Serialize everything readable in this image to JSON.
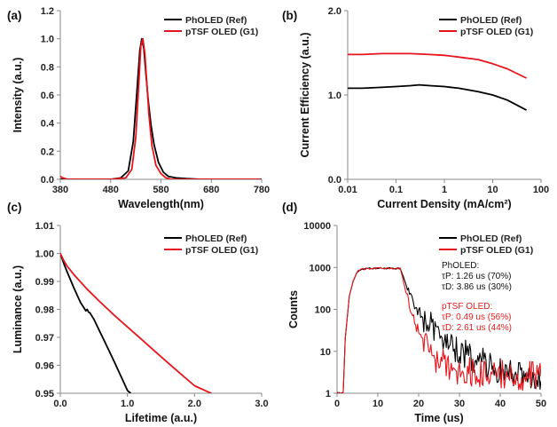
{
  "colors": {
    "ref": "#000000",
    "g1": "#e8141b"
  },
  "chart_data": [
    {
      "id": "a",
      "type": "line",
      "panel_label": "(a)",
      "xlabel": "Wavelength(nm)",
      "ylabel": "Intensity (a.u.)",
      "xlim": [
        380,
        780
      ],
      "ylim": [
        0,
        1.2
      ],
      "xticks": [
        "380",
        "480",
        "580",
        "680",
        "780"
      ],
      "yticks": [
        "0.0",
        "0.2",
        "0.4",
        "0.6",
        "0.8",
        "1.0",
        "1.2"
      ],
      "legend_position": "top-right",
      "series": [
        {
          "name": "PhOLED (Ref)",
          "color_key": "ref",
          "x": [
            380,
            480,
            500,
            515,
            525,
            532,
            538,
            542,
            546,
            550,
            555,
            560,
            566,
            575,
            585,
            595,
            610,
            630,
            660,
            780
          ],
          "y": [
            0,
            0,
            0.01,
            0.06,
            0.27,
            0.62,
            0.92,
            1.0,
            0.93,
            0.75,
            0.55,
            0.39,
            0.25,
            0.12,
            0.05,
            0.02,
            0.01,
            0.005,
            0,
            0
          ]
        },
        {
          "name": "pTSF OLED (G1)",
          "color_key": "g1",
          "x": [
            380,
            385,
            395,
            480,
            510,
            522,
            530,
            536,
            540,
            544,
            548,
            552,
            556,
            562,
            570,
            580,
            590,
            600,
            620,
            780
          ],
          "y": [
            0.02,
            0.01,
            0,
            0,
            0.01,
            0.07,
            0.3,
            0.68,
            0.95,
            1.0,
            0.9,
            0.68,
            0.46,
            0.24,
            0.1,
            0.04,
            0.01,
            0,
            0,
            0
          ]
        }
      ]
    },
    {
      "id": "b",
      "type": "line",
      "panel_label": "(b)",
      "xlabel": "Current Density (mA/cm²)",
      "ylabel": "Current Efficiency (a.u.)",
      "xscale": "log",
      "xlim": [
        0.01,
        100
      ],
      "ylim": [
        0,
        2.0
      ],
      "xticks": [
        "0.01",
        "0.1",
        "1",
        "10",
        "100"
      ],
      "yticks": [
        "0.0",
        "1.0",
        "2.0"
      ],
      "legend_position": "top-right",
      "series": [
        {
          "name": "PhOLED (Ref)",
          "color_key": "ref",
          "x": [
            0.01,
            0.02,
            0.05,
            0.1,
            0.2,
            0.3,
            0.5,
            1,
            2,
            5,
            10,
            20,
            50
          ],
          "y": [
            1.08,
            1.08,
            1.09,
            1.1,
            1.11,
            1.12,
            1.11,
            1.1,
            1.08,
            1.04,
            1.0,
            0.94,
            0.82
          ]
        },
        {
          "name": "pTSF OLED (G1)",
          "color_key": "g1",
          "x": [
            0.01,
            0.02,
            0.05,
            0.1,
            0.2,
            0.5,
            1,
            2,
            5,
            10,
            20,
            50
          ],
          "y": [
            1.48,
            1.48,
            1.49,
            1.49,
            1.49,
            1.48,
            1.47,
            1.45,
            1.42,
            1.37,
            1.31,
            1.2
          ]
        }
      ]
    },
    {
      "id": "c",
      "type": "line",
      "panel_label": "(c)",
      "xlabel": "Lifetime (a.u.)",
      "ylabel": "Luminance (a.u.)",
      "xlim": [
        0,
        3.0
      ],
      "ylim": [
        0.95,
        1.01
      ],
      "xticks": [
        "0.0",
        "1.0",
        "2.0",
        "3.0"
      ],
      "yticks": [
        "0.95",
        "0.96",
        "0.97",
        "0.98",
        "0.99",
        "1.00",
        "1.01"
      ],
      "legend_position": "top-right",
      "series": [
        {
          "name": "PhOLED (Ref)",
          "color_key": "ref",
          "x": [
            0,
            0.05,
            0.1,
            0.2,
            0.3,
            0.38,
            0.4,
            0.42,
            0.44,
            0.5,
            0.6,
            0.7,
            0.8,
            0.9,
            1.0,
            1.05
          ],
          "y": [
            1.0,
            0.9965,
            0.9935,
            0.9878,
            0.9825,
            0.9795,
            0.98,
            0.979,
            0.9788,
            0.9765,
            0.9715,
            0.9665,
            0.9615,
            0.9563,
            0.951,
            0.95
          ]
        },
        {
          "name": "pTSF OLED (G1)",
          "color_key": "g1",
          "x": [
            0,
            0.05,
            0.1,
            0.2,
            0.4,
            0.6,
            0.8,
            1.0,
            1.2,
            1.4,
            1.6,
            1.8,
            2.0,
            2.2,
            2.25
          ],
          "y": [
            1.0,
            0.9975,
            0.9955,
            0.9925,
            0.9872,
            0.9825,
            0.978,
            0.9737,
            0.9695,
            0.9652,
            0.961,
            0.9568,
            0.9527,
            0.9505,
            0.95
          ]
        }
      ]
    },
    {
      "id": "d",
      "type": "line",
      "panel_label": "(d)",
      "xlabel": "Time (us)",
      "ylabel": "Counts",
      "yscale": "log",
      "xlim": [
        0,
        50
      ],
      "ylim": [
        1,
        10000
      ],
      "xticks": [
        "0",
        "10",
        "20",
        "30",
        "40",
        "50"
      ],
      "yticks": [
        "1",
        "10",
        "100",
        "1000",
        "10000"
      ],
      "legend_position": "top-right",
      "series": [
        {
          "name": "PhOLED (Ref)",
          "color_key": "ref",
          "x": [
            0,
            1,
            1.5,
            2,
            3,
            4,
            5,
            6,
            8,
            10,
            12,
            14,
            15.5,
            16,
            17,
            18,
            19,
            20,
            22,
            24,
            26,
            28,
            30,
            32,
            35,
            38,
            42,
            46,
            50
          ],
          "y": [
            1,
            1,
            1,
            20,
            200,
            500,
            800,
            900,
            940,
            950,
            950,
            950,
            940,
            700,
            350,
            200,
            120,
            90,
            50,
            30,
            20,
            14,
            10,
            8,
            6,
            4,
            3,
            2.5,
            2
          ]
        },
        {
          "name": "pTSF OLED (G1)",
          "color_key": "g1",
          "x": [
            0,
            1,
            1.5,
            2,
            3,
            4,
            5,
            6,
            8,
            10,
            12,
            14,
            15.5,
            16,
            17,
            18,
            19,
            20,
            22,
            24,
            26,
            28,
            30,
            35,
            40,
            45,
            50
          ],
          "y": [
            1,
            1,
            1,
            20,
            200,
            500,
            800,
            900,
            940,
            950,
            950,
            950,
            940,
            600,
            230,
            100,
            50,
            30,
            12,
            7,
            5,
            4,
            3.5,
            3,
            2.8,
            2.6,
            2.5
          ]
        }
      ],
      "annotations": [
        {
          "lines": [
            "PhOLED:",
            "τP: 1.26 us (70%)",
            "τD: 3.86 us (30%)"
          ],
          "color_key": "ref"
        },
        {
          "lines": [
            "pTSF OLED:",
            "τP: 0.49 us (56%)",
            "τD: 2.61 us (44%)"
          ],
          "color_key": "g1"
        }
      ]
    }
  ]
}
